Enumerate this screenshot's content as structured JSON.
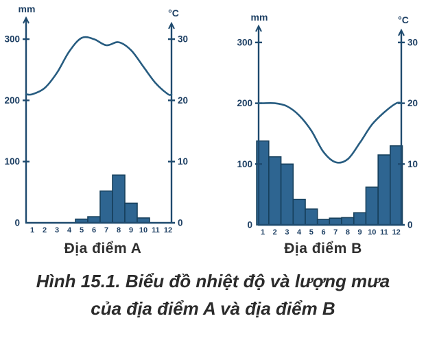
{
  "figure": {
    "caption_line1": "Hình 15.1. Biểu đồ nhiệt độ và lượng mưa",
    "caption_line2": "của địa điểm A và địa điểm B"
  },
  "chart_data": [
    {
      "type": "bar",
      "subtype": "climograph (bar rainfall + line temperature)",
      "title": "Địa điểm A",
      "categories": [
        "1",
        "2",
        "3",
        "4",
        "5",
        "6",
        "7",
        "8",
        "9",
        "10",
        "11",
        "12"
      ],
      "series": [
        {
          "name": "Lượng mưa",
          "type": "bar",
          "axis": "left",
          "values": [
            0,
            0,
            0,
            0,
            6,
            10,
            52,
            78,
            32,
            8,
            0,
            0
          ]
        },
        {
          "name": "Nhiệt độ",
          "type": "line",
          "axis": "right",
          "values": [
            21,
            22,
            24.5,
            28,
            30.2,
            30,
            29,
            29.5,
            28.2,
            25.5,
            22.8,
            21
          ]
        }
      ],
      "left_axis": {
        "unit": "mm",
        "ticks": [
          0,
          100,
          200,
          300
        ],
        "range": [
          0,
          340
        ]
      },
      "right_axis": {
        "unit": "°C",
        "ticks": [
          0,
          10,
          20,
          30
        ],
        "range": [
          0,
          34
        ]
      },
      "grid": false,
      "legend": "none",
      "colors": {
        "bar": "#2e6591",
        "bar_stroke": "#17405c",
        "line": "#275c80",
        "axis": "#1e4a6e",
        "tick_text": "#1d3f63"
      }
    },
    {
      "type": "bar",
      "subtype": "climograph (bar rainfall + line temperature)",
      "title": "Địa điểm B",
      "categories": [
        "1",
        "2",
        "3",
        "4",
        "5",
        "6",
        "7",
        "8",
        "9",
        "10",
        "11",
        "12"
      ],
      "series": [
        {
          "name": "Lượng mưa",
          "type": "bar",
          "axis": "left",
          "values": [
            138,
            112,
            100,
            42,
            26,
            9,
            11,
            12,
            20,
            62,
            115,
            130
          ]
        },
        {
          "name": "Nhiệt độ",
          "type": "line",
          "axis": "right",
          "values": [
            20,
            20,
            19.5,
            18,
            15.5,
            12,
            10.3,
            10.8,
            13.5,
            16.5,
            18.5,
            20
          ]
        }
      ],
      "left_axis": {
        "unit": "mm",
        "ticks": [
          0,
          100,
          200,
          300
        ],
        "range": [
          0,
          340
        ]
      },
      "right_axis": {
        "unit": "°C",
        "ticks": [
          0,
          10,
          20,
          30
        ],
        "range": [
          0,
          34
        ]
      },
      "grid": false,
      "legend": "none",
      "colors": {
        "bar": "#2e6591",
        "bar_stroke": "#17405c",
        "line": "#275c80",
        "axis": "#1e4a6e",
        "tick_text": "#1d3f63"
      }
    }
  ]
}
